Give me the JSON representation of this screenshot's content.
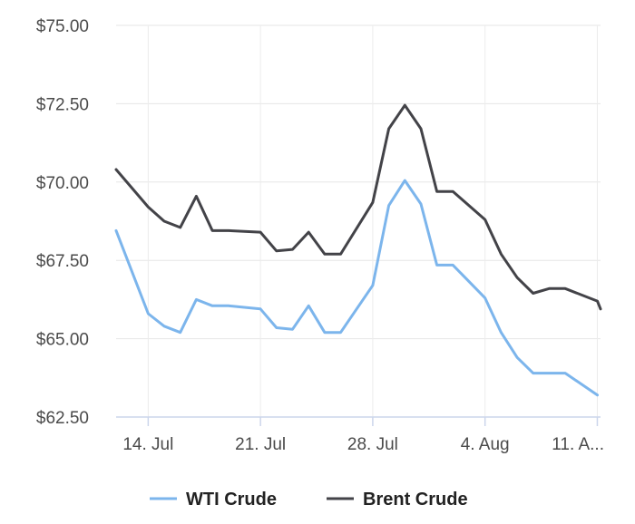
{
  "chart_data": {
    "type": "line",
    "x_tick_labels": [
      "14. Jul",
      "21. Jul",
      "28. Jul",
      "4. Aug",
      "11. A..."
    ],
    "y_tick_labels": [
      "$75.00",
      "$72.50",
      "$70.00",
      "$67.50",
      "$65.00",
      "$62.50"
    ],
    "y_ticks": [
      75.0,
      72.5,
      70.0,
      67.5,
      65.0,
      62.5
    ],
    "ylim": [
      62.5,
      75.0
    ],
    "x_ticks_day": [
      14,
      21,
      28,
      35,
      42
    ],
    "xlim_day": [
      12,
      42.2
    ],
    "grid": true,
    "legend": "bottom",
    "series": [
      {
        "name": "WTI Crude",
        "color": "#7cb5ec",
        "x_day": [
          12,
          14,
          15,
          16,
          17,
          18,
          19,
          21,
          22,
          23,
          24,
          25,
          26,
          28,
          29,
          30,
          31,
          32,
          33,
          35,
          36,
          37,
          38,
          39,
          40,
          42
        ],
        "values": [
          68.45,
          65.8,
          65.4,
          65.2,
          66.25,
          66.05,
          66.05,
          65.95,
          65.35,
          65.3,
          66.05,
          65.2,
          65.2,
          66.7,
          69.25,
          70.05,
          69.3,
          67.35,
          67.35,
          66.3,
          65.2,
          64.4,
          63.9,
          63.9,
          63.9,
          63.2
        ]
      },
      {
        "name": "Brent Crude",
        "color": "#434348",
        "x_day": [
          12,
          14,
          15,
          16,
          17,
          18,
          19,
          21,
          22,
          23,
          24,
          25,
          26,
          28,
          29,
          30,
          31,
          32,
          33,
          35,
          36,
          37,
          38,
          39,
          40,
          42,
          42.2
        ],
        "values": [
          70.4,
          69.2,
          68.75,
          68.55,
          69.55,
          68.45,
          68.45,
          68.4,
          67.8,
          67.85,
          68.4,
          67.7,
          67.7,
          69.35,
          71.7,
          72.45,
          71.7,
          69.7,
          69.7,
          68.8,
          67.7,
          66.95,
          66.45,
          66.6,
          66.6,
          66.2,
          65.95
        ]
      }
    ]
  }
}
